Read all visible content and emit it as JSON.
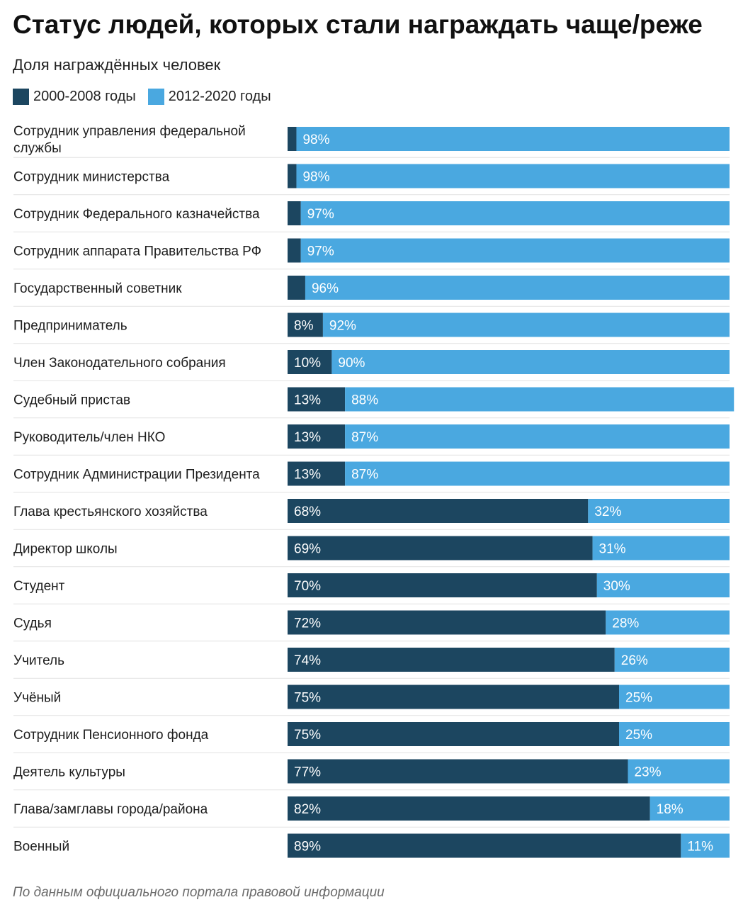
{
  "chart_data": {
    "type": "bar",
    "orientation": "horizontal",
    "stacked": true,
    "percent": true,
    "title": "Статус людей, которых стали награждать чаще/реже",
    "subtitle": "Доля награждённых человек",
    "categories": [
      "Сотрудник управления федеральной службы",
      "Сотрудник министерства",
      "Сотрудник Федерального казначейства",
      "Сотрудник аппарата Правительства РФ",
      "Государственный советник",
      "Предприниматель",
      "Член Законодательного собрания",
      "Судебный пристав",
      "Руководитель/член НКО",
      "Сотрудник Администрации Президента",
      "Глава крестьянского хозяйства",
      "Директор школы",
      "Студент",
      "Судья",
      "Учитель",
      "Учёный",
      "Сотрудник Пенсионного фонда",
      "Деятель культуры",
      "Глава/замглавы города/района",
      "Военный"
    ],
    "series": [
      {
        "name": "2000-2008 годы",
        "color": "#1c4660",
        "values": [
          2,
          2,
          3,
          3,
          4,
          8,
          10,
          13,
          13,
          13,
          68,
          69,
          70,
          72,
          74,
          75,
          75,
          77,
          82,
          89
        ],
        "labels": [
          "",
          "",
          "",
          "",
          "",
          "8%",
          "10%",
          "13%",
          "13%",
          "13%",
          "68%",
          "69%",
          "70%",
          "72%",
          "74%",
          "75%",
          "75%",
          "77%",
          "82%",
          "89%"
        ]
      },
      {
        "name": "2012-2020 годы",
        "color": "#4aa8e0",
        "values": [
          98,
          98,
          97,
          97,
          96,
          92,
          90,
          88,
          87,
          87,
          32,
          31,
          30,
          28,
          26,
          25,
          25,
          23,
          18,
          11
        ],
        "labels": [
          "98%",
          "98%",
          "97%",
          "97%",
          "96%",
          "92%",
          "90%",
          "88%",
          "87%",
          "87%",
          "32%",
          "31%",
          "30%",
          "28%",
          "26%",
          "25%",
          "25%",
          "23%",
          "18%",
          "11%"
        ]
      }
    ],
    "xlim": [
      0,
      100
    ],
    "grid": false,
    "legend_position": "top-left"
  },
  "source": "По данным официального портала правовой информации"
}
